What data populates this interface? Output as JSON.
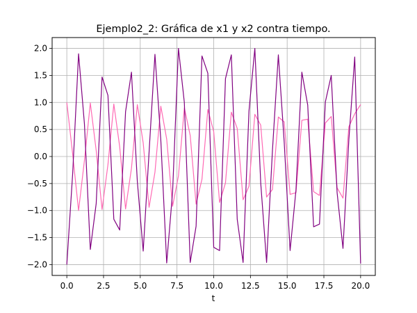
{
  "chart_data": {
    "type": "line",
    "title": "Ejemplo2_2: Gráfica de x1 y x2 contra tiempo.",
    "xlabel": "t",
    "ylabel": "",
    "xlim": [
      -1.0,
      21.0
    ],
    "ylim": [
      -2.2,
      2.2
    ],
    "xticks": [
      0.0,
      2.5,
      5.0,
      7.5,
      10.0,
      12.5,
      15.0,
      17.5,
      20.0
    ],
    "xtick_labels": [
      "0.0",
      "2.5",
      "5.0",
      "7.5",
      "10.0",
      "12.5",
      "15.0",
      "17.5",
      "20.0"
    ],
    "yticks": [
      -2.0,
      -1.5,
      -1.0,
      -0.5,
      0.0,
      0.5,
      1.0,
      1.5,
      2.0
    ],
    "ytick_labels": [
      "−2.0",
      "−1.5",
      "−1.0",
      "−0.5",
      "0.0",
      "0.5",
      "1.0",
      "1.5",
      "2.0"
    ],
    "grid": true,
    "series": [
      {
        "color": "#ff69b4",
        "x": [
          0.0,
          0.4,
          0.8,
          1.2,
          1.6,
          2.0,
          2.4,
          2.8,
          3.2,
          3.6,
          4.0,
          4.4,
          4.8,
          5.2,
          5.6,
          6.0,
          6.4,
          6.8,
          7.2,
          7.6,
          8.0,
          8.4,
          8.8,
          9.2,
          9.6,
          10.0,
          10.4,
          10.8,
          11.2,
          11.6,
          12.0,
          12.4,
          12.8,
          13.2,
          13.6,
          14.0,
          14.4,
          14.8,
          15.2,
          15.6,
          16.0,
          16.4,
          16.8,
          17.2,
          17.6,
          18.0,
          18.4,
          18.8,
          19.2,
          19.6,
          20.0
        ],
        "values": [
          1.0,
          0.04,
          -1.0,
          -0.07,
          0.99,
          0.11,
          -0.98,
          -0.15,
          0.97,
          0.18,
          -0.97,
          -0.22,
          0.96,
          0.25,
          -0.94,
          -0.29,
          0.93,
          0.32,
          -0.92,
          -0.36,
          0.9,
          0.39,
          -0.88,
          -0.42,
          0.87,
          0.46,
          -0.85,
          -0.49,
          0.82,
          0.52,
          -0.8,
          -0.55,
          0.78,
          0.58,
          -0.75,
          -0.61,
          0.73,
          0.64,
          -0.7,
          -0.67,
          0.67,
          0.69,
          -0.65,
          -0.72,
          0.62,
          0.74,
          -0.58,
          -0.77,
          0.55,
          0.79,
          0.96
        ]
      },
      {
        "color": "#800080",
        "x": [
          0.0,
          0.4,
          0.8,
          1.2,
          1.6,
          2.0,
          2.4,
          2.8,
          3.2,
          3.6,
          4.0,
          4.4,
          4.8,
          5.2,
          5.6,
          6.0,
          6.4,
          6.8,
          7.2,
          7.6,
          8.0,
          8.4,
          8.8,
          9.2,
          9.6,
          10.0,
          10.4,
          10.8,
          11.2,
          11.6,
          12.0,
          12.4,
          12.8,
          13.2,
          13.6,
          14.0,
          14.4,
          14.8,
          15.2,
          15.6,
          16.0,
          16.4,
          16.8,
          17.2,
          17.6,
          18.0,
          18.4,
          18.8,
          19.2,
          19.6,
          20.0
        ],
        "values": [
          -2.0,
          -0.31,
          1.9,
          0.6,
          -1.72,
          -0.87,
          1.47,
          1.13,
          -1.16,
          -1.36,
          0.83,
          1.56,
          -0.46,
          -1.75,
          0.08,
          1.89,
          0.3,
          -1.97,
          -0.66,
          2.0,
          1.0,
          -1.96,
          -1.29,
          1.86,
          1.54,
          -1.68,
          -1.74,
          1.44,
          1.88,
          -1.16,
          -1.96,
          0.84,
          2.0,
          -0.49,
          -1.96,
          0.12,
          1.88,
          0.26,
          -1.74,
          -0.62,
          1.56,
          0.95,
          -1.3,
          -1.25,
          1.01,
          1.5,
          -0.67,
          -1.7,
          0.31,
          1.84,
          -1.98
        ]
      }
    ]
  }
}
